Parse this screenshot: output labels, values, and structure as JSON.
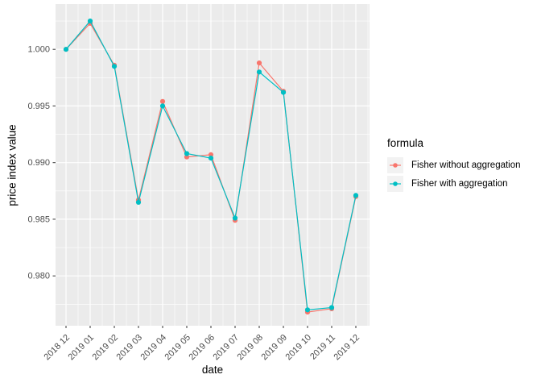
{
  "chart_data": {
    "type": "line",
    "title": "",
    "xlabel": "date",
    "ylabel": "price index value",
    "legend_title": "formula",
    "legend_position": "right",
    "grid": true,
    "categories": [
      "2018 12",
      "2019 01",
      "2019 02",
      "2019 03",
      "2019 04",
      "2019 05",
      "2019 06",
      "2019 07",
      "2019 08",
      "2019 09",
      "2019 10",
      "2019 11",
      "2019 12"
    ],
    "series": [
      {
        "name": "Fisher without aggregation",
        "color": "#F8766D",
        "values": [
          1.0,
          1.0023,
          0.9986,
          0.9867,
          0.9954,
          0.9905,
          0.9907,
          0.9849,
          0.9988,
          0.9963,
          0.9768,
          0.9771,
          0.987
        ]
      },
      {
        "name": "Fisher with aggregation",
        "color": "#00BFC4",
        "values": [
          1.0,
          1.0025,
          0.9985,
          0.9865,
          0.995,
          0.9908,
          0.9904,
          0.9851,
          0.998,
          0.9962,
          0.977,
          0.9772,
          0.9871
        ]
      }
    ],
    "y_ticks": [
      0.98,
      0.985,
      0.99,
      0.995,
      1.0
    ],
    "y_tick_labels": [
      "0.980",
      "0.985",
      "0.990",
      "0.995",
      "1.000"
    ],
    "y_minor": [
      0.9775,
      0.9825,
      0.9875,
      0.9925,
      0.9975,
      1.0025
    ],
    "ylim": [
      0.9756,
      1.004
    ],
    "theme": {
      "panel_bg": "#EBEBEB",
      "grid_color": "#FFFFFF",
      "axis_text_color": "#4D4D4D",
      "axis_title_color": "#000000",
      "tick_color": "#333333",
      "legend_key_bg": "#F2F2F2",
      "background": "#FFFFFF"
    }
  }
}
